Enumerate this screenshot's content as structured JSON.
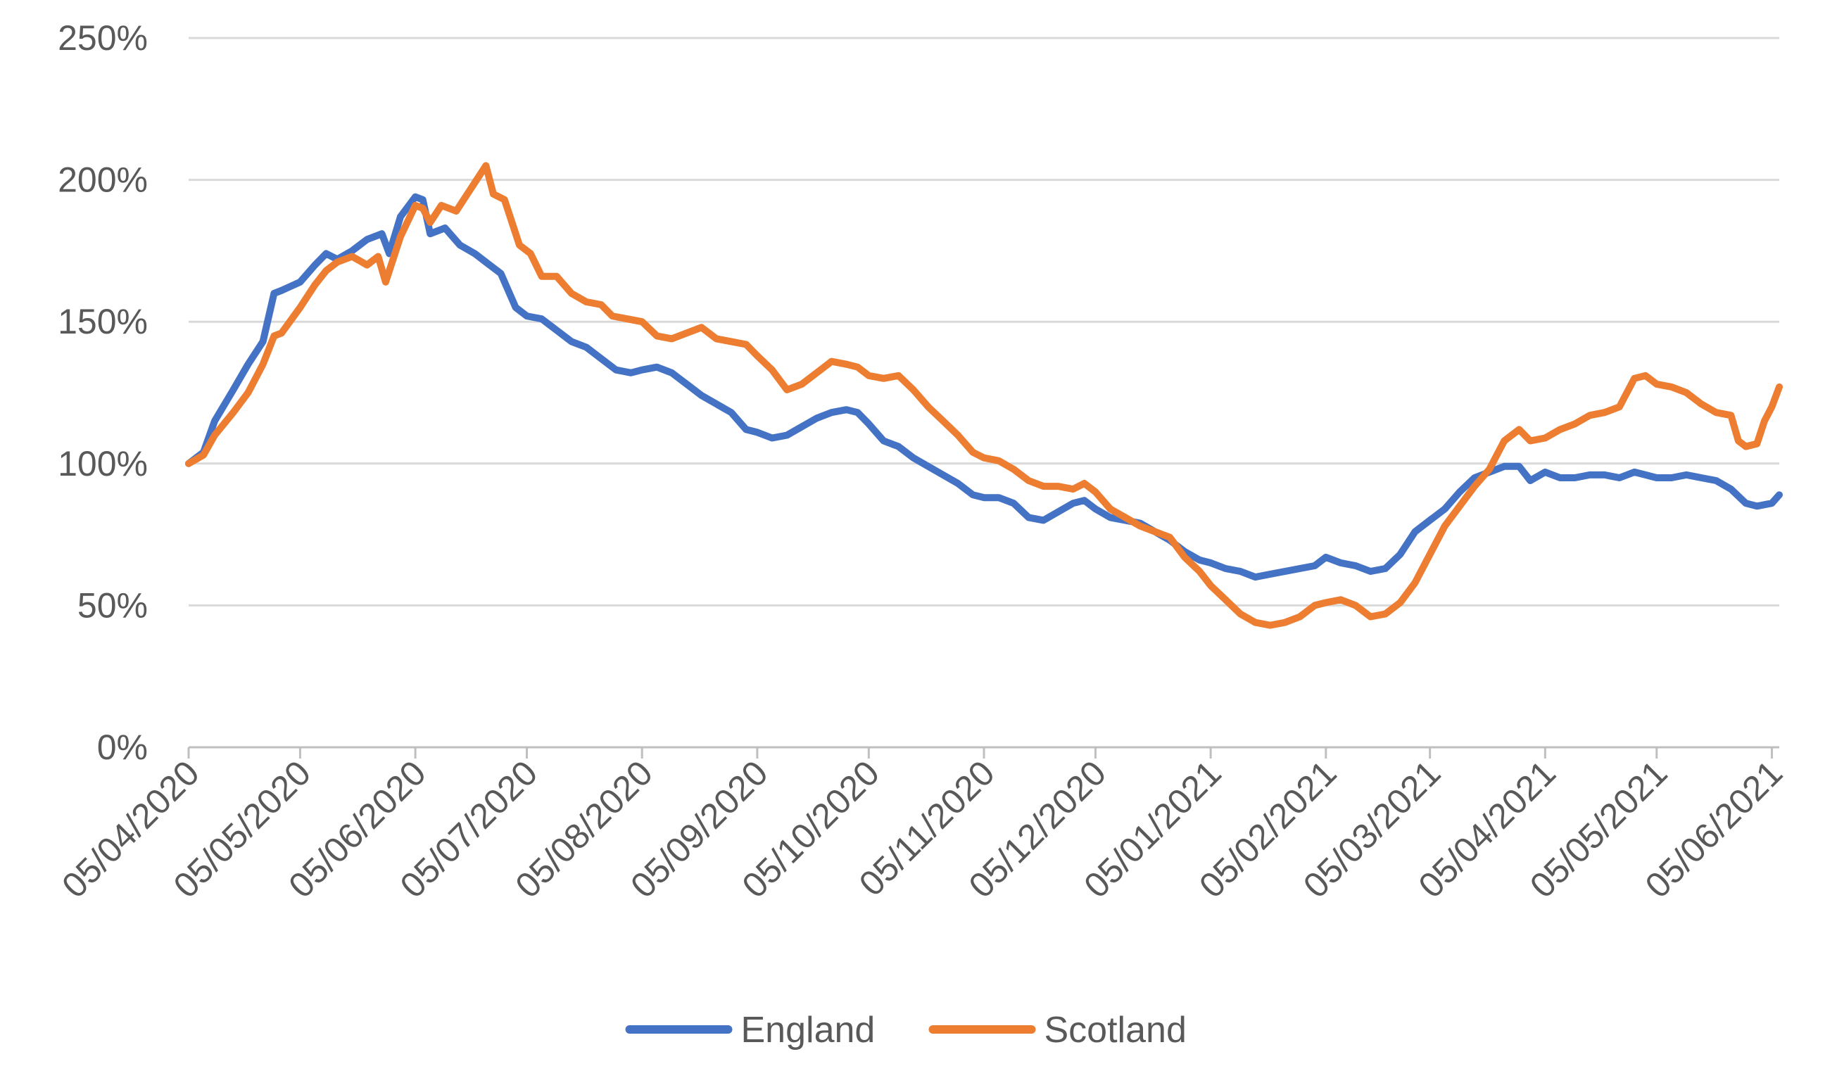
{
  "chart_data": {
    "type": "line",
    "title": "",
    "xlabel": "",
    "ylabel": "",
    "x_range": [
      "05/04/2020",
      "07/06/2021"
    ],
    "ylim": [
      0,
      250
    ],
    "y_ticks": [
      0,
      50,
      100,
      150,
      200,
      250
    ],
    "y_tick_labels": [
      "0%",
      "50%",
      "100%",
      "150%",
      "200%",
      "250%"
    ],
    "x_ticks": [
      "05/04/2020",
      "05/05/2020",
      "05/06/2020",
      "05/07/2020",
      "05/08/2020",
      "05/09/2020",
      "05/10/2020",
      "05/11/2020",
      "05/12/2020",
      "05/01/2021",
      "05/02/2021",
      "05/03/2021",
      "05/04/2021",
      "05/05/2021",
      "05/06/2021"
    ],
    "grid": "horizontal",
    "legend_position": "bottom-center",
    "series": [
      {
        "name": "England",
        "color": "#4472C4",
        "points": [
          [
            "05/04/2020",
            100
          ],
          [
            "09/04/2020",
            104
          ],
          [
            "12/04/2020",
            115
          ],
          [
            "17/04/2020",
            126
          ],
          [
            "21/04/2020",
            135
          ],
          [
            "25/04/2020",
            143
          ],
          [
            "28/04/2020",
            160
          ],
          [
            "30/04/2020",
            161
          ],
          [
            "05/05/2020",
            164
          ],
          [
            "09/05/2020",
            170
          ],
          [
            "12/05/2020",
            174
          ],
          [
            "15/05/2020",
            172
          ],
          [
            "19/05/2020",
            175
          ],
          [
            "23/05/2020",
            179
          ],
          [
            "27/05/2020",
            181
          ],
          [
            "29/05/2020",
            174
          ],
          [
            "01/06/2020",
            187
          ],
          [
            "05/06/2020",
            194
          ],
          [
            "07/06/2020",
            193
          ],
          [
            "09/06/2020",
            181
          ],
          [
            "13/06/2020",
            183
          ],
          [
            "17/06/2020",
            177
          ],
          [
            "21/06/2020",
            174
          ],
          [
            "25/06/2020",
            170
          ],
          [
            "28/06/2020",
            167
          ],
          [
            "02/07/2020",
            155
          ],
          [
            "05/07/2020",
            152
          ],
          [
            "09/07/2020",
            151
          ],
          [
            "13/07/2020",
            147
          ],
          [
            "17/07/2020",
            143
          ],
          [
            "21/07/2020",
            141
          ],
          [
            "25/07/2020",
            137
          ],
          [
            "29/07/2020",
            133
          ],
          [
            "02/08/2020",
            132
          ],
          [
            "05/08/2020",
            133
          ],
          [
            "09/08/2020",
            134
          ],
          [
            "13/08/2020",
            132
          ],
          [
            "17/08/2020",
            128
          ],
          [
            "21/08/2020",
            124
          ],
          [
            "25/08/2020",
            121
          ],
          [
            "29/08/2020",
            118
          ],
          [
            "02/09/2020",
            112
          ],
          [
            "05/09/2020",
            111
          ],
          [
            "09/09/2020",
            109
          ],
          [
            "13/09/2020",
            110
          ],
          [
            "17/09/2020",
            113
          ],
          [
            "21/09/2020",
            116
          ],
          [
            "25/09/2020",
            118
          ],
          [
            "29/09/2020",
            119
          ],
          [
            "02/10/2020",
            118
          ],
          [
            "05/10/2020",
            114
          ],
          [
            "09/10/2020",
            108
          ],
          [
            "13/10/2020",
            106
          ],
          [
            "17/10/2020",
            102
          ],
          [
            "21/10/2020",
            99
          ],
          [
            "25/10/2020",
            96
          ],
          [
            "29/10/2020",
            93
          ],
          [
            "02/11/2020",
            89
          ],
          [
            "05/11/2020",
            88
          ],
          [
            "09/11/2020",
            88
          ],
          [
            "13/11/2020",
            86
          ],
          [
            "17/11/2020",
            81
          ],
          [
            "21/11/2020",
            80
          ],
          [
            "25/11/2020",
            83
          ],
          [
            "29/11/2020",
            86
          ],
          [
            "02/12/2020",
            87
          ],
          [
            "05/12/2020",
            84
          ],
          [
            "09/12/2020",
            81
          ],
          [
            "13/12/2020",
            80
          ],
          [
            "17/12/2020",
            79
          ],
          [
            "21/12/2020",
            76
          ],
          [
            "25/12/2020",
            73
          ],
          [
            "29/12/2020",
            69
          ],
          [
            "02/01/2021",
            66
          ],
          [
            "05/01/2021",
            65
          ],
          [
            "09/01/2021",
            63
          ],
          [
            "13/01/2021",
            62
          ],
          [
            "17/01/2021",
            60
          ],
          [
            "21/01/2021",
            61
          ],
          [
            "25/01/2021",
            62
          ],
          [
            "29/01/2021",
            63
          ],
          [
            "02/02/2021",
            64
          ],
          [
            "05/02/2021",
            67
          ],
          [
            "09/02/2021",
            65
          ],
          [
            "13/02/2021",
            64
          ],
          [
            "17/02/2021",
            62
          ],
          [
            "21/02/2021",
            63
          ],
          [
            "25/02/2021",
            68
          ],
          [
            "01/03/2021",
            76
          ],
          [
            "05/03/2021",
            80
          ],
          [
            "09/03/2021",
            84
          ],
          [
            "13/03/2021",
            90
          ],
          [
            "17/03/2021",
            95
          ],
          [
            "21/03/2021",
            97
          ],
          [
            "25/03/2021",
            99
          ],
          [
            "29/03/2021",
            99
          ],
          [
            "01/04/2021",
            94
          ],
          [
            "05/04/2021",
            97
          ],
          [
            "09/04/2021",
            95
          ],
          [
            "13/04/2021",
            95
          ],
          [
            "17/04/2021",
            96
          ],
          [
            "21/04/2021",
            96
          ],
          [
            "25/04/2021",
            95
          ],
          [
            "29/04/2021",
            97
          ],
          [
            "02/05/2021",
            96
          ],
          [
            "05/05/2021",
            95
          ],
          [
            "09/05/2021",
            95
          ],
          [
            "13/05/2021",
            96
          ],
          [
            "17/05/2021",
            95
          ],
          [
            "21/05/2021",
            94
          ],
          [
            "25/05/2021",
            91
          ],
          [
            "29/05/2021",
            86
          ],
          [
            "01/06/2021",
            85
          ],
          [
            "05/06/2021",
            86
          ],
          [
            "07/06/2021",
            89
          ]
        ]
      },
      {
        "name": "Scotland",
        "color": "#ED7D31",
        "points": [
          [
            "05/04/2020",
            100
          ],
          [
            "09/04/2020",
            103
          ],
          [
            "12/04/2020",
            110
          ],
          [
            "17/04/2020",
            118
          ],
          [
            "21/04/2020",
            125
          ],
          [
            "25/04/2020",
            135
          ],
          [
            "28/04/2020",
            145
          ],
          [
            "30/04/2020",
            146
          ],
          [
            "05/05/2020",
            155
          ],
          [
            "09/05/2020",
            163
          ],
          [
            "12/05/2020",
            168
          ],
          [
            "15/05/2020",
            171
          ],
          [
            "19/05/2020",
            173
          ],
          [
            "23/05/2020",
            170
          ],
          [
            "26/05/2020",
            173
          ],
          [
            "28/05/2020",
            164
          ],
          [
            "01/06/2020",
            180
          ],
          [
            "05/06/2020",
            191
          ],
          [
            "07/06/2020",
            190
          ],
          [
            "09/06/2020",
            185
          ],
          [
            "12/06/2020",
            191
          ],
          [
            "16/06/2020",
            189
          ],
          [
            "20/06/2020",
            197
          ],
          [
            "24/06/2020",
            205
          ],
          [
            "26/06/2020",
            195
          ],
          [
            "29/06/2020",
            193
          ],
          [
            "03/07/2020",
            177
          ],
          [
            "06/07/2020",
            174
          ],
          [
            "09/07/2020",
            166
          ],
          [
            "13/07/2020",
            166
          ],
          [
            "17/07/2020",
            160
          ],
          [
            "21/07/2020",
            157
          ],
          [
            "25/07/2020",
            156
          ],
          [
            "28/07/2020",
            152
          ],
          [
            "01/08/2020",
            151
          ],
          [
            "05/08/2020",
            150
          ],
          [
            "09/08/2020",
            145
          ],
          [
            "13/08/2020",
            144
          ],
          [
            "17/08/2020",
            146
          ],
          [
            "21/08/2020",
            148
          ],
          [
            "25/08/2020",
            144
          ],
          [
            "29/08/2020",
            143
          ],
          [
            "02/09/2020",
            142
          ],
          [
            "05/09/2020",
            138
          ],
          [
            "09/09/2020",
            133
          ],
          [
            "13/09/2020",
            126
          ],
          [
            "17/09/2020",
            128
          ],
          [
            "21/09/2020",
            132
          ],
          [
            "25/09/2020",
            136
          ],
          [
            "29/09/2020",
            135
          ],
          [
            "02/10/2020",
            134
          ],
          [
            "05/10/2020",
            131
          ],
          [
            "09/10/2020",
            130
          ],
          [
            "13/10/2020",
            131
          ],
          [
            "17/10/2020",
            126
          ],
          [
            "21/10/2020",
            120
          ],
          [
            "25/10/2020",
            115
          ],
          [
            "29/10/2020",
            110
          ],
          [
            "02/11/2020",
            104
          ],
          [
            "05/11/2020",
            102
          ],
          [
            "09/11/2020",
            101
          ],
          [
            "13/11/2020",
            98
          ],
          [
            "17/11/2020",
            94
          ],
          [
            "21/11/2020",
            92
          ],
          [
            "25/11/2020",
            92
          ],
          [
            "29/11/2020",
            91
          ],
          [
            "02/12/2020",
            93
          ],
          [
            "05/12/2020",
            90
          ],
          [
            "09/12/2020",
            84
          ],
          [
            "13/12/2020",
            81
          ],
          [
            "17/12/2020",
            78
          ],
          [
            "21/12/2020",
            76
          ],
          [
            "25/12/2020",
            74
          ],
          [
            "29/12/2020",
            67
          ],
          [
            "02/01/2021",
            62
          ],
          [
            "05/01/2021",
            57
          ],
          [
            "09/01/2021",
            52
          ],
          [
            "13/01/2021",
            47
          ],
          [
            "17/01/2021",
            44
          ],
          [
            "21/01/2021",
            43
          ],
          [
            "25/01/2021",
            44
          ],
          [
            "29/01/2021",
            46
          ],
          [
            "02/02/2021",
            50
          ],
          [
            "05/02/2021",
            51
          ],
          [
            "09/02/2021",
            52
          ],
          [
            "13/02/2021",
            50
          ],
          [
            "17/02/2021",
            46
          ],
          [
            "21/02/2021",
            47
          ],
          [
            "25/02/2021",
            51
          ],
          [
            "01/03/2021",
            58
          ],
          [
            "05/03/2021",
            68
          ],
          [
            "09/03/2021",
            78
          ],
          [
            "13/03/2021",
            85
          ],
          [
            "17/03/2021",
            92
          ],
          [
            "21/03/2021",
            98
          ],
          [
            "25/03/2021",
            108
          ],
          [
            "29/03/2021",
            112
          ],
          [
            "01/04/2021",
            108
          ],
          [
            "05/04/2021",
            109
          ],
          [
            "09/04/2021",
            112
          ],
          [
            "13/04/2021",
            114
          ],
          [
            "17/04/2021",
            117
          ],
          [
            "21/04/2021",
            118
          ],
          [
            "25/04/2021",
            120
          ],
          [
            "29/04/2021",
            130
          ],
          [
            "02/05/2021",
            131
          ],
          [
            "05/05/2021",
            128
          ],
          [
            "09/05/2021",
            127
          ],
          [
            "13/05/2021",
            125
          ],
          [
            "17/05/2021",
            121
          ],
          [
            "21/05/2021",
            118
          ],
          [
            "25/05/2021",
            117
          ],
          [
            "27/05/2021",
            108
          ],
          [
            "29/05/2021",
            106
          ],
          [
            "01/06/2021",
            107
          ],
          [
            "03/06/2021",
            115
          ],
          [
            "05/06/2021",
            120
          ],
          [
            "07/06/2021",
            127
          ]
        ]
      }
    ]
  }
}
